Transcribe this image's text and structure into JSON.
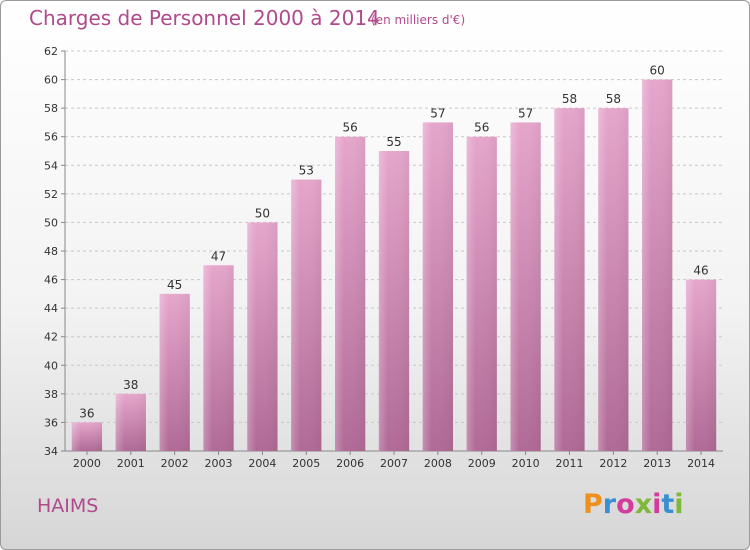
{
  "title": "Charges de Personnel 2000 à 2014",
  "subtitle": "(en milliers d'€)",
  "place": "HAIMS",
  "logo": "Proxiti",
  "colors": {
    "bar_top": "#e6a6cc",
    "bar_bottom": "#b06a96",
    "text_accent": "#b04a8c"
  },
  "chart_data": {
    "type": "bar",
    "categories": [
      "2000",
      "2001",
      "2002",
      "2003",
      "2004",
      "2005",
      "2006",
      "2007",
      "2008",
      "2009",
      "2010",
      "2011",
      "2012",
      "2013",
      "2014"
    ],
    "values": [
      36,
      38,
      45,
      47,
      50,
      53,
      56,
      55,
      57,
      56,
      57,
      58,
      58,
      60,
      46
    ],
    "ylim": [
      34,
      62
    ],
    "yticks": [
      34,
      36,
      38,
      40,
      42,
      44,
      46,
      48,
      50,
      52,
      54,
      56,
      58,
      60,
      62
    ],
    "grid": true
  }
}
